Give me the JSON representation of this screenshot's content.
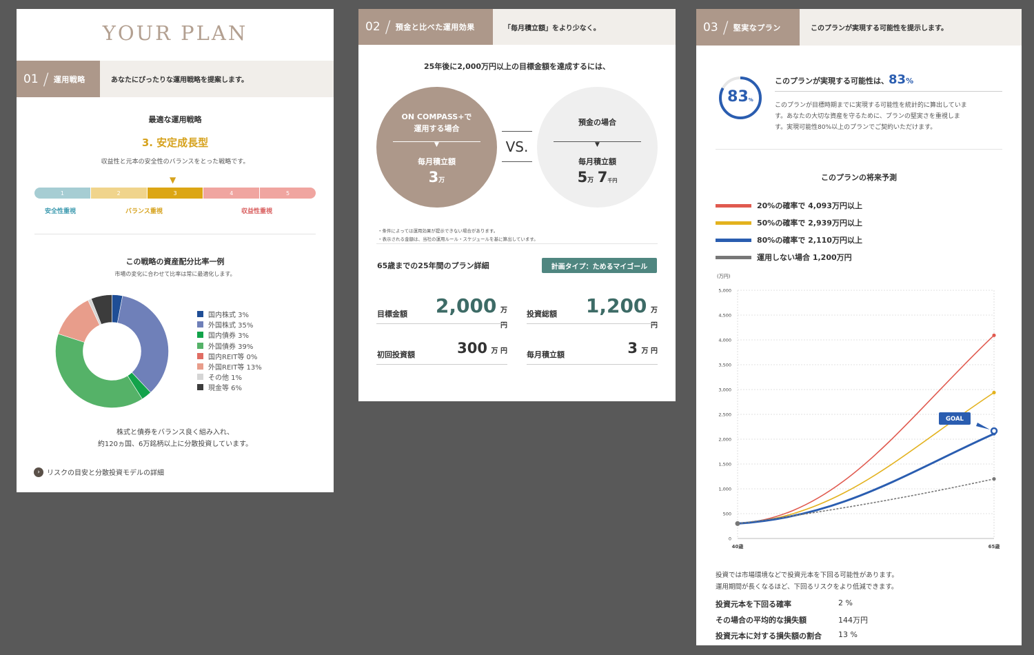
{
  "panel1": {
    "plan_title": "YOUR PLAN",
    "section": {
      "num": "01",
      "title": "運用戦略",
      "desc": "あなたにぴったりな運用戦略を提案します。"
    },
    "optimal_label": "最適な運用戦略",
    "strategy_name": "3. 安定成長型",
    "strategy_desc": "収益性と元本の安全性のバランスをとった戦略です。",
    "scale": [
      {
        "label": "1",
        "color": "#a6cdd3"
      },
      {
        "label": "2",
        "color": "#f0d48c"
      },
      {
        "label": "3",
        "color": "#dca614"
      },
      {
        "label": "4",
        "color": "#f0a5a0"
      },
      {
        "label": "5",
        "color": "#f0a5a0"
      }
    ],
    "scale_marker": "▼",
    "scale_labels": {
      "safety": "安全性重視",
      "balance": "バランス重視",
      "profit": "収益性重視"
    },
    "allocation_title": "この戦略の資産配分比率一例",
    "allocation_sub": "市場の変化に合わせて比率は常に最適化します。",
    "chart_data": {
      "type": "pie",
      "categories": [
        "国内株式",
        "外国株式",
        "国内債券",
        "外国債券",
        "国内REIT等",
        "外国REIT等",
        "その他",
        "現金等"
      ],
      "values": [
        3,
        35,
        3,
        39,
        0,
        13,
        1,
        6
      ],
      "colors": [
        "#1f4e96",
        "#6f80b9",
        "#12a34a",
        "#55b268",
        "#e06d63",
        "#e89d8b",
        "#d5d5d5",
        "#3c3c3c"
      ]
    },
    "legend": [
      {
        "name": "国内株式 3%",
        "color": "#1f4e96"
      },
      {
        "name": "外国株式 35%",
        "color": "#6f80b9"
      },
      {
        "name": "国内債券 3%",
        "color": "#12a34a"
      },
      {
        "name": "外国債券 39%",
        "color": "#55b268"
      },
      {
        "name": "国内REIT等 0%",
        "color": "#e06d63"
      },
      {
        "name": "外国REIT等 13%",
        "color": "#e89d8b"
      },
      {
        "name": "その他 1%",
        "color": "#d5d5d5"
      },
      {
        "name": "現金等 6%",
        "color": "#3c3c3c"
      }
    ],
    "note_line1": "株式と債券をバランス良く組み入れ、",
    "note_line2": "約120ヵ国、6万銘柄以上に分散投資しています。",
    "link": "リスクの目安と分散投資モデルの詳細"
  },
  "panel2": {
    "section": {
      "num": "02",
      "title": "預金と比べた運用効果",
      "desc": "「毎月積立額」をより少なく。"
    },
    "headline": "25年後に2,000万円以上の目標金額を達成するには、",
    "left_circle": {
      "line1": "ON COMPASS+で",
      "line2": "運用する場合",
      "label": "毎月積立額",
      "value": "3",
      "unit": "万"
    },
    "vs": "VS.",
    "right_circle": {
      "title": "預金の場合",
      "label": "毎月積立額",
      "value1": "5",
      "unit1": "万",
      "value2": "7",
      "unit2": "千円"
    },
    "arrow": "▼",
    "notes": [
      "・条件によっては運用効果が提示できない場合があります。",
      "・表示される金額は、当社の運用ルール・スケジュールを基に算出しています。"
    ],
    "detail_title": "65歳までの25年間のプラン詳細",
    "plan_type_badge": "計画タイプ：ためるマイゴール",
    "details": {
      "target": {
        "label": "目標金額",
        "value": "2,000",
        "unit": "万 円"
      },
      "total": {
        "label": "投資総額",
        "value": "1,200",
        "unit": "万 円"
      },
      "initial": {
        "label": "初回投資額",
        "value": "300",
        "unit": "万 円"
      },
      "monthly": {
        "label": "毎月積立額",
        "value": "3",
        "unit": "万 円"
      }
    }
  },
  "panel3": {
    "section": {
      "num": "03",
      "title": "堅実なプラン",
      "desc": "このプランが実現する可能性を提示します。"
    },
    "gauge_value": "83",
    "gauge_unit": "%",
    "gauge_fraction": 0.83,
    "prob_title": "このプランが実現する可能性は、",
    "prob_value": "83",
    "prob_unit": "%",
    "prob_desc_1": "このプランが目標時期までに実現する可能性を統計的に算出していま",
    "prob_desc_2": "す。あなたの大切な資産を守るために、プランの堅実さを重視しま",
    "prob_desc_3": "す。実現可能性80%以上のプランでご契約いただけます。",
    "forecast_title": "このプランの将来予測",
    "legend": [
      {
        "name": "20%の確率で 4,093万円以上",
        "color": "#e05a4f"
      },
      {
        "name": "50%の確率で 2,939万円以上",
        "color": "#e3b21e"
      },
      {
        "name": "80%の確率で 2,110万円以上",
        "color": "#2a5db0"
      },
      {
        "name": "運用しない場合 1,200万円",
        "color": "#777777"
      }
    ],
    "chart_data": {
      "type": "line",
      "ylabel": "(万円)",
      "x": [
        "40歳",
        "65歳"
      ],
      "y_ticks": [
        "5,000",
        "4,500",
        "4,000",
        "3,500",
        "3,000",
        "2,500",
        "2,000",
        "1,500",
        "1,000",
        "500",
        "0"
      ],
      "ylim": [
        0,
        5000
      ],
      "start_value": 300,
      "series": [
        {
          "name": "20%の確率で 4,093万円以上",
          "end_value": 4093,
          "color": "#e05a4f"
        },
        {
          "name": "50%の確率で 2,939万円以上",
          "end_value": 2939,
          "color": "#e3b21e"
        },
        {
          "name": "80%の確率で 2,110万円以上",
          "end_value": 2110,
          "color": "#2a5db0"
        },
        {
          "name": "運用しない場合 1,200万円",
          "end_value": 1200,
          "color": "#777777"
        }
      ],
      "goal_value": 2000,
      "goal_label": "GOAL"
    },
    "risk_note_1": "投資では市場環境などで投資元本を下回る可能性があります。",
    "risk_note_2": "運用期間が長くなるほど、下回るリスクをより低減できます。",
    "risks": [
      {
        "label": "投資元本を下回る確率",
        "value": "2 %"
      },
      {
        "label": "その場合の平均的な損失額",
        "value": "144万円"
      },
      {
        "label": "投資元本に対する損失額の割合",
        "value": "13 %"
      }
    ]
  }
}
